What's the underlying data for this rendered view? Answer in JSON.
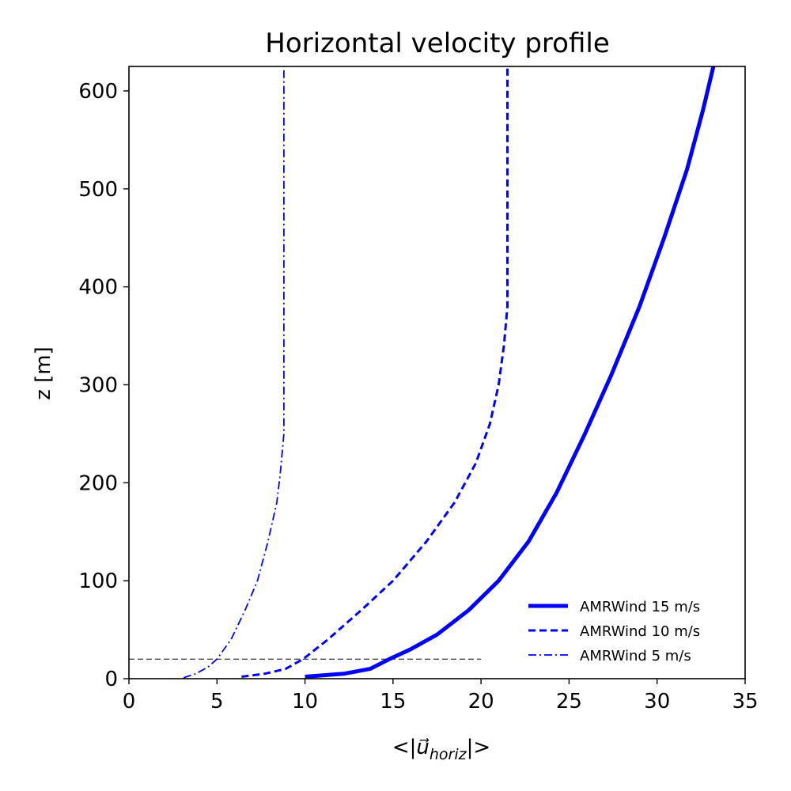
{
  "chart_data": {
    "type": "line",
    "title": "Horizontal velocity profile",
    "xlabel": "<|u⃗horiz|>",
    "xlabel_parts": {
      "prefix": "<|",
      "vector": "u⃗",
      "subscript": "horiz",
      "suffix": "|>"
    },
    "ylabel": "z [m]",
    "xlim": [
      0,
      35
    ],
    "ylim": [
      0,
      625
    ],
    "xticks": [
      "0",
      "5",
      "10",
      "15",
      "20",
      "25",
      "30",
      "35"
    ],
    "yticks": [
      "0",
      "100",
      "200",
      "300",
      "400",
      "500",
      "600"
    ],
    "grid": false,
    "legend_position": "lower-right",
    "reference_line": {
      "y": 20,
      "x_start": 0,
      "x_end": 20,
      "style": "dashed",
      "color": "#000000"
    },
    "series": [
      {
        "name": "AMRWind 15 m/s",
        "color": "#0000ff",
        "style": "solid",
        "points": [
          [
            10.0,
            2
          ],
          [
            12.2,
            5
          ],
          [
            13.7,
            10
          ],
          [
            14.8,
            20
          ],
          [
            16.0,
            30
          ],
          [
            17.5,
            45
          ],
          [
            19.3,
            70
          ],
          [
            21.0,
            100
          ],
          [
            22.7,
            140
          ],
          [
            24.3,
            190
          ],
          [
            25.9,
            250
          ],
          [
            27.4,
            310
          ],
          [
            29.0,
            380
          ],
          [
            30.4,
            450
          ],
          [
            31.7,
            520
          ],
          [
            32.6,
            580
          ],
          [
            33.2,
            625
          ]
        ]
      },
      {
        "name": "AMRWind 10 m/s",
        "color": "#0000ff",
        "style": "dashed",
        "points": [
          [
            6.4,
            2
          ],
          [
            7.7,
            5
          ],
          [
            8.9,
            10
          ],
          [
            9.9,
            20
          ],
          [
            11.3,
            40
          ],
          [
            13.2,
            70
          ],
          [
            15.0,
            100
          ],
          [
            16.9,
            140
          ],
          [
            18.5,
            180
          ],
          [
            19.7,
            220
          ],
          [
            20.5,
            260
          ],
          [
            21.0,
            300
          ],
          [
            21.3,
            340
          ],
          [
            21.5,
            380
          ],
          [
            21.5,
            450
          ],
          [
            21.5,
            550
          ],
          [
            21.5,
            625
          ]
        ]
      },
      {
        "name": "AMRWind 5 m/s",
        "color": "#0000ff",
        "style": "dashdot",
        "points": [
          [
            3.1,
            1
          ],
          [
            3.8,
            5
          ],
          [
            4.5,
            12
          ],
          [
            5.0,
            20
          ],
          [
            5.8,
            40
          ],
          [
            6.6,
            70
          ],
          [
            7.3,
            100
          ],
          [
            7.9,
            140
          ],
          [
            8.4,
            180
          ],
          [
            8.6,
            210
          ],
          [
            8.8,
            250
          ],
          [
            8.8,
            350
          ],
          [
            8.8,
            500
          ],
          [
            8.8,
            625
          ]
        ]
      }
    ]
  }
}
